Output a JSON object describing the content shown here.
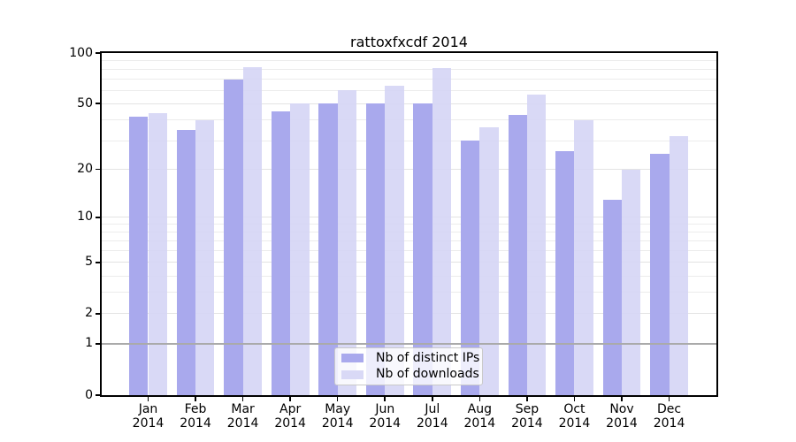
{
  "chart_data": {
    "type": "bar",
    "title": "rattoxfxcdf 2014",
    "categories": [
      "Jan",
      "Feb",
      "Mar",
      "Apr",
      "May",
      "Jun",
      "Jul",
      "Aug",
      "Sep",
      "Oct",
      "Nov",
      "Dec"
    ],
    "x_sublabel": "2014",
    "series": [
      {
        "name": "Nb of distinct IPs",
        "color": "#a9a9ed",
        "alpha": 1,
        "values": [
          42,
          35,
          70,
          45,
          50,
          50,
          50,
          30,
          43,
          26,
          13,
          25
        ]
      },
      {
        "name": "Nb of downloads",
        "color": "#d5d5f5",
        "alpha": 0.9,
        "values": [
          44,
          40,
          82,
          50,
          60,
          64,
          81,
          36,
          57,
          40,
          20,
          32
        ]
      }
    ],
    "yscale": "log1p",
    "ylim": [
      0,
      100
    ],
    "yticks": [
      0,
      1,
      2,
      5,
      10,
      20,
      50,
      100
    ],
    "minor_gridlines": [
      3,
      4,
      6,
      7,
      8,
      9,
      30,
      40,
      60,
      70,
      80,
      90
    ],
    "highlight_line_y": 1,
    "grid": true,
    "legend_position": "lower center",
    "colors": {
      "grid_major": "#e3e3e3",
      "grid_minor": "#ececec",
      "highlight_line": "#aaaaaa",
      "frame": "#000000",
      "text": "#000000"
    }
  }
}
